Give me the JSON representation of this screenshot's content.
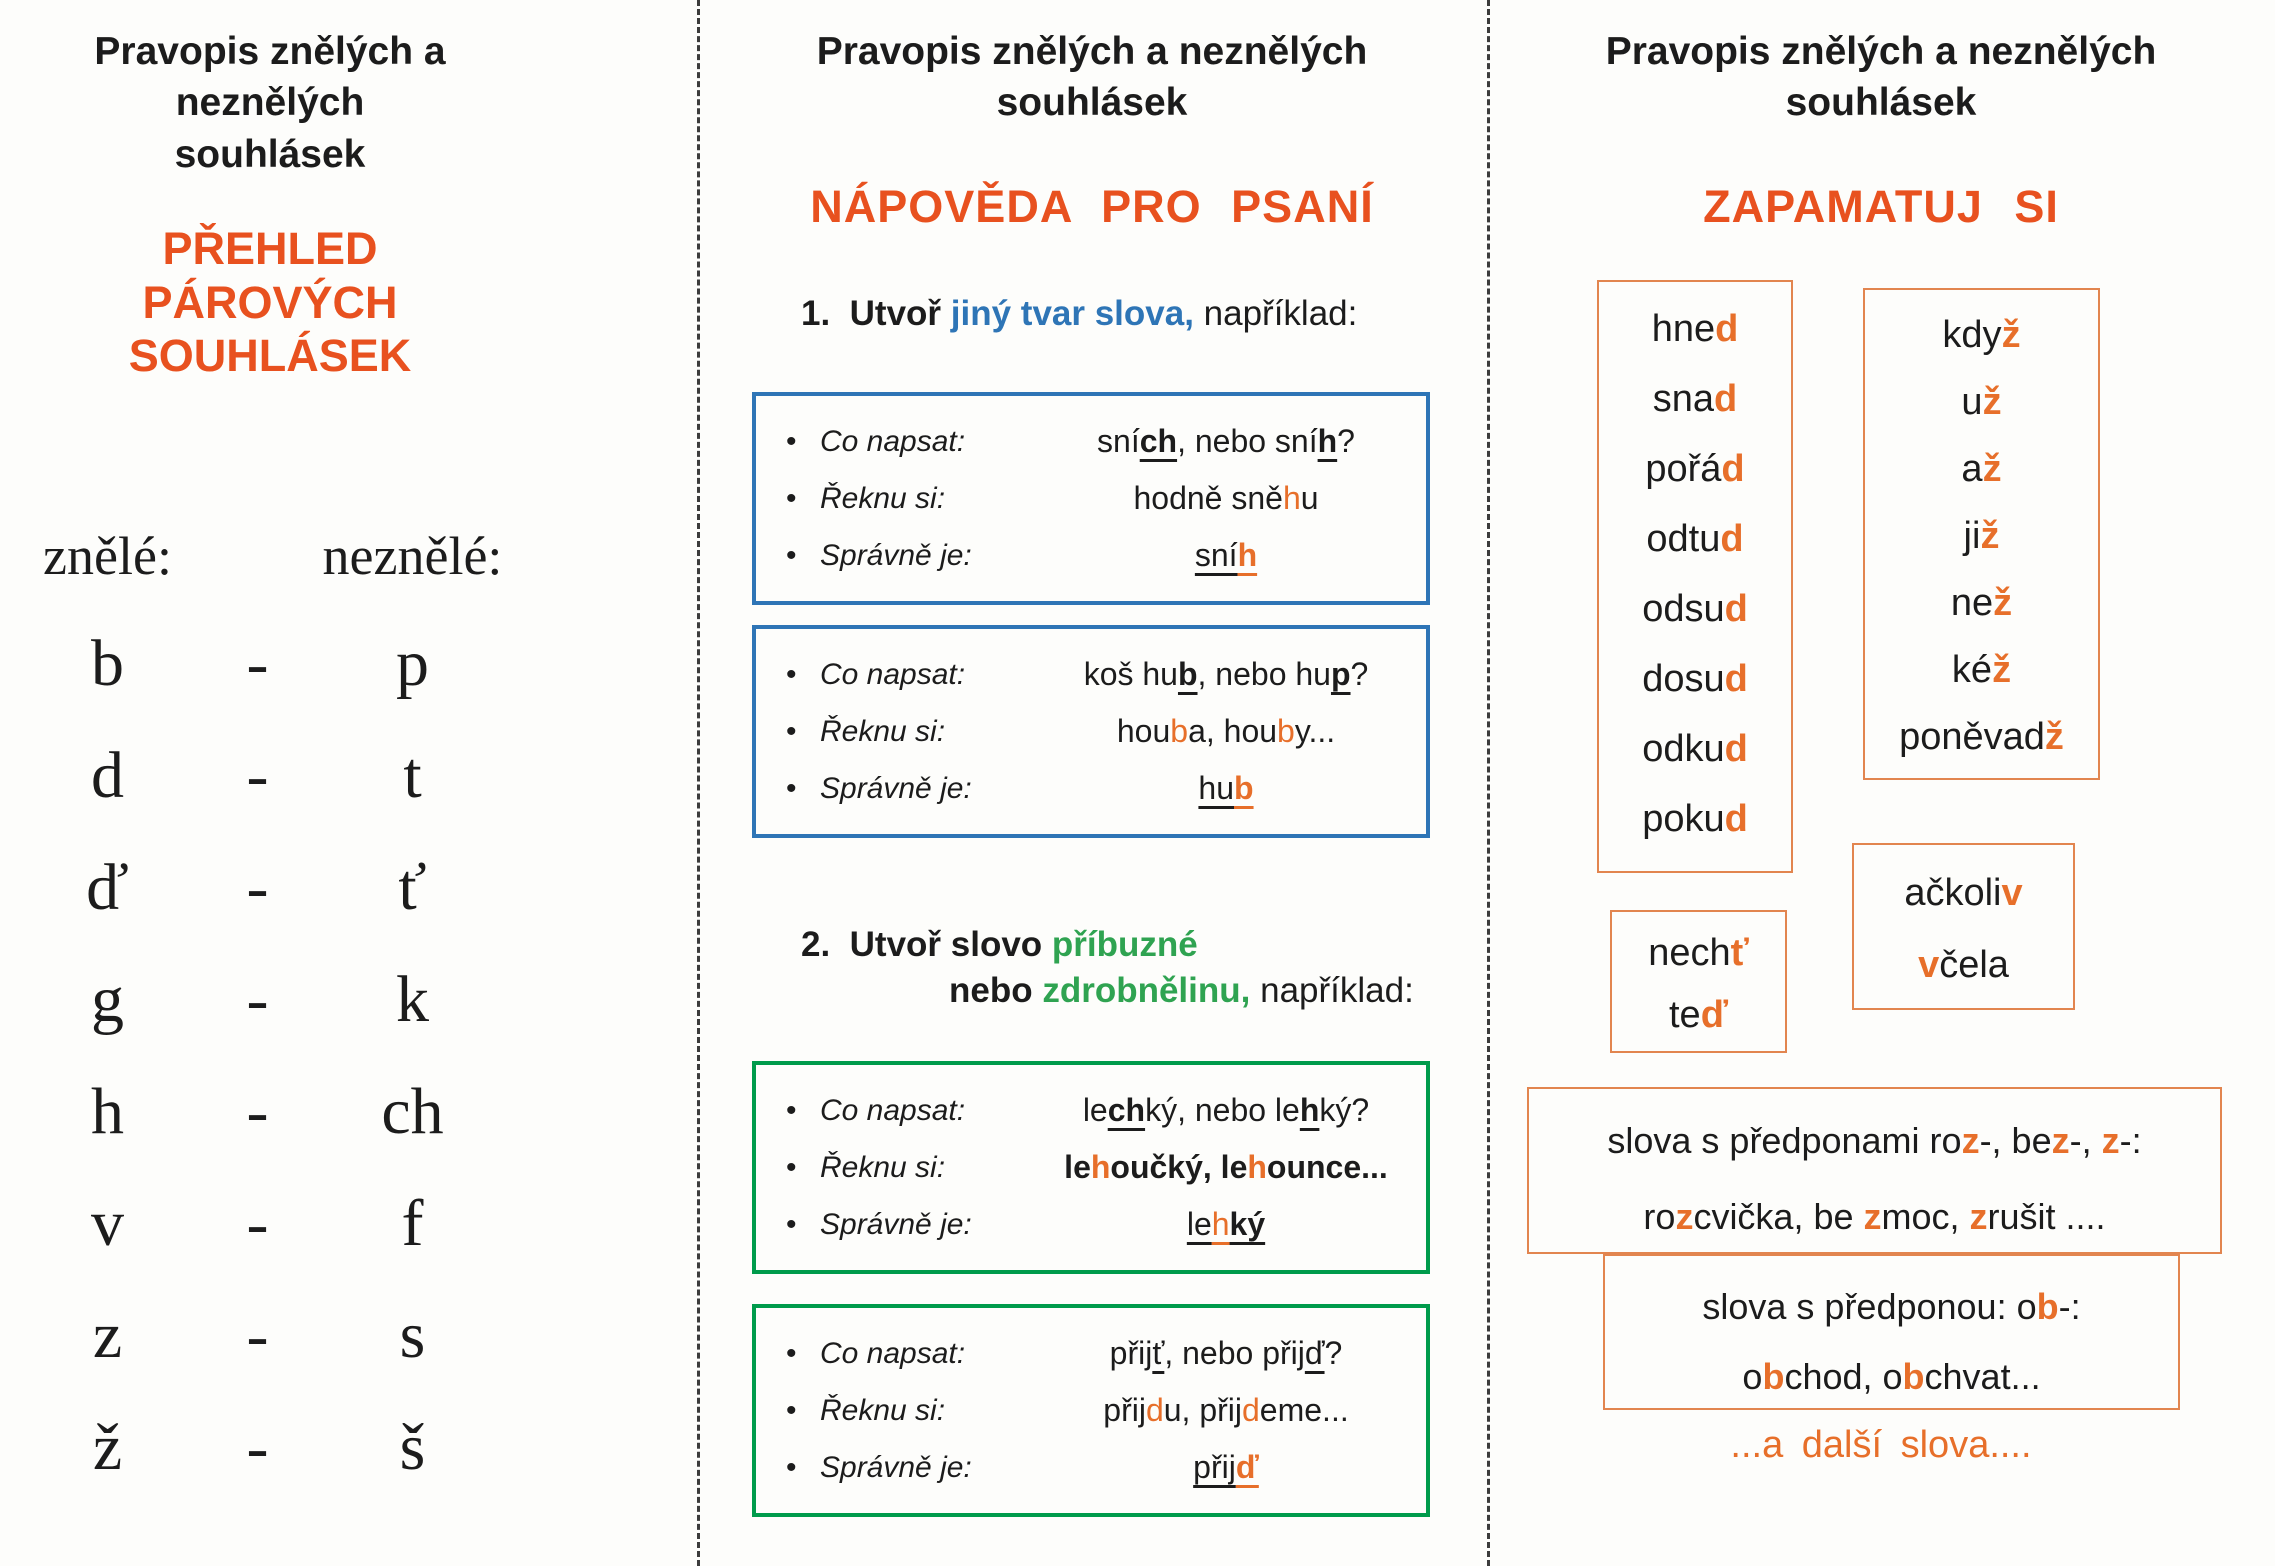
{
  "colors": {
    "heading_orange": "#E8511F",
    "letter_orange": "#E76F2A",
    "box_border_orange": "#E2854F",
    "blue": "#2E75B6",
    "green_border": "#009B4B",
    "green_text": "#2FA351",
    "text_black": "#1C1C1C",
    "background": "#FDFDFB"
  },
  "title": {
    "line1": "Pravopis znělých a neznělých",
    "line2": "souhlásek"
  },
  "panel1": {
    "heading_line1": "PŘEHLED",
    "heading_line2": "PÁROVÝCH SOUHLÁSEK",
    "col_left": "znělé:",
    "col_right": "neznělé:",
    "dash": "-",
    "pairs": [
      {
        "voiced": "b",
        "voiceless": "p"
      },
      {
        "voiced": "d",
        "voiceless": "t"
      },
      {
        "voiced": "ď",
        "voiceless": "ť"
      },
      {
        "voiced": "g",
        "voiceless": "k"
      },
      {
        "voiced": "h",
        "voiceless": "ch"
      },
      {
        "voiced": "v",
        "voiceless": "f"
      },
      {
        "voiced": "z",
        "voiceless": "s"
      },
      {
        "voiced": "ž",
        "voiceless": "š"
      }
    ]
  },
  "panel2": {
    "heading": "NÁPOVĚDA PRO PSANÍ",
    "bullet": "•",
    "step1_heading": [
      {
        "t": "1.  ",
        "s": "b"
      },
      {
        "t": "Utvoř ",
        "s": "b"
      },
      {
        "t": "jiný tvar slova,",
        "s": "bB"
      },
      {
        "t": " například:"
      }
    ],
    "step2_heading_line1": [
      {
        "t": "2.  ",
        "s": "b"
      },
      {
        "t": "Utvoř slovo ",
        "s": "b"
      },
      {
        "t": "příbuzné",
        "s": "bg"
      }
    ],
    "step2_heading_line2": [
      {
        "t": "nebo ",
        "s": "b"
      },
      {
        "t": "zdrobnělinu,",
        "s": "bg"
      },
      {
        "t": " například:"
      }
    ],
    "boxes": [
      {
        "border": "blue",
        "rows": [
          {
            "label": "Co napsat:",
            "content": [
              {
                "t": "sní"
              },
              {
                "t": "ch",
                "s": "bu"
              },
              {
                "t": ", nebo sní"
              },
              {
                "t": "h",
                "s": "bu"
              },
              {
                "t": "?"
              }
            ]
          },
          {
            "label": "Řeknu si:",
            "content": [
              {
                "t": "hodně sně"
              },
              {
                "t": "h",
                "s": "o"
              },
              {
                "t": "u"
              }
            ]
          },
          {
            "label": "Správně je:",
            "content": [
              {
                "t": "sní",
                "s": "u"
              },
              {
                "t": "h",
                "s": "obu"
              }
            ]
          }
        ]
      },
      {
        "border": "blue",
        "rows": [
          {
            "label": "Co napsat:",
            "content": [
              {
                "t": "koš hu"
              },
              {
                "t": "b",
                "s": "bu"
              },
              {
                "t": ", nebo hu"
              },
              {
                "t": "p",
                "s": "bu"
              },
              {
                "t": "?"
              }
            ]
          },
          {
            "label": "Řeknu si:",
            "content": [
              {
                "t": "hou"
              },
              {
                "t": "b",
                "s": "o"
              },
              {
                "t": "a, hou"
              },
              {
                "t": "b",
                "s": "o"
              },
              {
                "t": "y..."
              }
            ]
          },
          {
            "label": "Správně je:",
            "content": [
              {
                "t": "hu",
                "s": "u"
              },
              {
                "t": "b",
                "s": "obu"
              }
            ]
          }
        ]
      },
      {
        "border": "green",
        "rows": [
          {
            "label": "Co napsat:",
            "content": [
              {
                "t": "le"
              },
              {
                "t": "ch",
                "s": "bu"
              },
              {
                "t": "ký, nebo le"
              },
              {
                "t": "h",
                "s": "bu"
              },
              {
                "t": "ký?"
              }
            ]
          },
          {
            "label": "Řeknu si:",
            "content": [
              {
                "t": "le",
                "s": "b"
              },
              {
                "t": "h",
                "s": "ob"
              },
              {
                "t": "oučký, le",
                "s": "b"
              },
              {
                "t": "h",
                "s": "ob"
              },
              {
                "t": "ounce...",
                "s": "b"
              }
            ]
          },
          {
            "label": "Správně je:",
            "content": [
              {
                "t": "le",
                "s": "u"
              },
              {
                "t": "h",
                "s": "ou"
              },
              {
                "t": "ký",
                "s": "bu"
              }
            ]
          }
        ]
      },
      {
        "border": "green",
        "rows": [
          {
            "label": "Co napsat:",
            "content": [
              {
                "t": "přij"
              },
              {
                "t": "ť",
                "s": "u"
              },
              {
                "t": ", nebo přij"
              },
              {
                "t": "ď",
                "s": "u"
              },
              {
                "t": "?"
              }
            ]
          },
          {
            "label": "Řeknu si:",
            "content": [
              {
                "t": "přij"
              },
              {
                "t": "d",
                "s": "o"
              },
              {
                "t": "u, přij"
              },
              {
                "t": "d",
                "s": "o"
              },
              {
                "t": "eme..."
              }
            ]
          },
          {
            "label": "Správně je:",
            "content": [
              {
                "t": "přij",
                "s": "u"
              },
              {
                "t": "ď",
                "s": "obu"
              }
            ]
          }
        ]
      }
    ]
  },
  "panel3": {
    "heading": "ZAPAMATUJ SI",
    "boxA": {
      "words": [
        [
          {
            "t": "hne"
          },
          {
            "t": "d",
            "s": "ob"
          }
        ],
        [
          {
            "t": "sna"
          },
          {
            "t": "d",
            "s": "ob"
          }
        ],
        [
          {
            "t": "pořá"
          },
          {
            "t": "d",
            "s": "ob"
          }
        ],
        [
          {
            "t": "odtu"
          },
          {
            "t": "d",
            "s": "ob"
          }
        ],
        [
          {
            "t": "odsu"
          },
          {
            "t": "d",
            "s": "ob"
          }
        ],
        [
          {
            "t": "dosu"
          },
          {
            "t": "d",
            "s": "ob"
          }
        ],
        [
          {
            "t": "odku"
          },
          {
            "t": "d",
            "s": "ob"
          }
        ],
        [
          {
            "t": "poku"
          },
          {
            "t": "d",
            "s": "ob"
          }
        ]
      ]
    },
    "boxB": {
      "words": [
        [
          {
            "t": "kdy"
          },
          {
            "t": "ž",
            "s": "ob"
          }
        ],
        [
          {
            "t": "u"
          },
          {
            "t": "ž",
            "s": "ob"
          }
        ],
        [
          {
            "t": "a"
          },
          {
            "t": "ž",
            "s": "ob"
          }
        ],
        [
          {
            "t": "ji"
          },
          {
            "t": "ž",
            "s": "ob"
          }
        ],
        [
          {
            "t": "ne"
          },
          {
            "t": "ž",
            "s": "ob"
          }
        ],
        [
          {
            "t": "ké"
          },
          {
            "t": "ž",
            "s": "ob"
          }
        ],
        [
          {
            "t": "poněvad"
          },
          {
            "t": "ž",
            "s": "ob"
          }
        ]
      ]
    },
    "boxC": {
      "words": [
        [
          {
            "t": "nech"
          },
          {
            "t": "ť",
            "s": "ob"
          }
        ],
        [
          {
            "t": "te"
          },
          {
            "t": "ď",
            "s": "ob"
          }
        ]
      ]
    },
    "boxD": {
      "words": [
        [
          {
            "t": "ačkoli"
          },
          {
            "t": "v",
            "s": "ob"
          }
        ],
        [
          {
            "t": "v",
            "s": "ob"
          },
          {
            "t": "čela"
          }
        ]
      ]
    },
    "boxE": {
      "line1": [
        {
          "t": "slova s předponami ro"
        },
        {
          "t": "z",
          "s": "ob"
        },
        {
          "t": "-, be"
        },
        {
          "t": "z",
          "s": "ob"
        },
        {
          "t": "-, "
        },
        {
          "t": "z",
          "s": "ob"
        },
        {
          "t": "-:"
        }
      ],
      "line2": [
        {
          "t": "ro"
        },
        {
          "t": "z",
          "s": "ob"
        },
        {
          "t": "cvička, be "
        },
        {
          "t": "z",
          "s": "ob"
        },
        {
          "t": "moc, "
        },
        {
          "t": "z",
          "s": "ob"
        },
        {
          "t": "rušit ...."
        }
      ]
    },
    "boxF": {
      "line1": [
        {
          "t": "slova s předponou: o"
        },
        {
          "t": "b",
          "s": "ob"
        },
        {
          "t": "-:"
        }
      ],
      "line2": [
        {
          "t": "o"
        },
        {
          "t": "b",
          "s": "ob"
        },
        {
          "t": "chod, o"
        },
        {
          "t": "b",
          "s": "ob"
        },
        {
          "t": "chvat..."
        }
      ]
    },
    "footer": "...a další slova...."
  }
}
